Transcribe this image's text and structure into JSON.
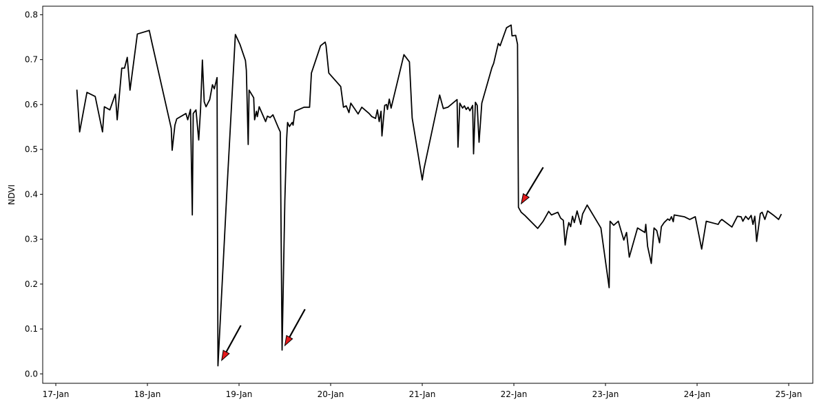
{
  "chart_data": {
    "type": "line",
    "ylabel": "NDVI",
    "color": "#000000",
    "grid": false,
    "x": [
      17.23,
      17.26,
      17.34,
      17.43,
      17.51,
      17.53,
      17.59,
      17.65,
      17.67,
      17.72,
      17.75,
      17.78,
      17.81,
      17.89,
      18.02,
      18.05,
      18.26,
      18.27,
      18.3,
      18.32,
      18.42,
      18.44,
      18.47,
      18.49,
      18.5,
      18.53,
      18.56,
      18.58,
      18.6,
      18.62,
      18.64,
      18.68,
      18.71,
      18.73,
      18.76,
      18.77,
      18.87,
      18.96,
      19.01,
      19.07,
      19.08,
      19.1,
      19.11,
      19.16,
      19.17,
      19.19,
      19.2,
      19.22,
      19.29,
      19.31,
      19.34,
      19.37,
      19.43,
      19.45,
      19.47,
      19.5,
      19.52,
      19.53,
      19.55,
      19.58,
      19.59,
      19.61,
      19.71,
      19.77,
      19.79,
      19.89,
      19.94,
      19.95,
      19.98,
      20.11,
      20.14,
      20.17,
      20.2,
      20.22,
      20.3,
      20.34,
      20.42,
      20.45,
      20.49,
      20.51,
      20.53,
      20.55,
      20.56,
      20.59,
      20.61,
      20.62,
      20.64,
      20.66,
      20.8,
      20.86,
      20.89,
      21.0,
      21.02,
      21.19,
      21.23,
      21.28,
      21.38,
      21.39,
      21.41,
      21.44,
      21.46,
      21.48,
      21.5,
      21.52,
      21.55,
      21.56,
      21.58,
      21.6,
      21.62,
      21.65,
      21.76,
      21.78,
      21.83,
      21.85,
      21.92,
      21.97,
      21.98,
      22.02,
      22.04,
      22.05,
      22.08,
      22.12,
      22.26,
      22.32,
      22.38,
      22.41,
      22.48,
      22.51,
      22.54,
      22.56,
      22.58,
      22.6,
      22.62,
      22.64,
      22.66,
      22.69,
      22.73,
      22.75,
      22.8,
      22.95,
      23.04,
      23.05,
      23.09,
      23.14,
      23.2,
      23.23,
      23.26,
      23.35,
      23.43,
      23.44,
      23.46,
      23.5,
      23.53,
      23.56,
      23.59,
      23.61,
      23.64,
      23.68,
      23.7,
      23.72,
      23.74,
      23.75,
      23.86,
      23.92,
      23.98,
      24.05,
      24.1,
      24.23,
      24.25,
      24.27,
      24.38,
      24.44,
      24.48,
      24.5,
      24.53,
      24.56,
      24.59,
      24.61,
      24.63,
      24.65,
      24.69,
      24.71,
      24.74,
      24.77,
      24.83,
      24.89,
      24.92
    ],
    "values": [
      0.633,
      0.539,
      0.627,
      0.618,
      0.539,
      0.595,
      0.588,
      0.623,
      0.566,
      0.681,
      0.681,
      0.705,
      0.632,
      0.757,
      0.765,
      0.737,
      0.547,
      0.498,
      0.554,
      0.568,
      0.58,
      0.566,
      0.589,
      0.354,
      0.58,
      0.588,
      0.521,
      0.589,
      0.699,
      0.606,
      0.595,
      0.611,
      0.644,
      0.635,
      0.66,
      0.018,
      0.417,
      0.756,
      0.734,
      0.698,
      0.676,
      0.511,
      0.632,
      0.615,
      0.566,
      0.585,
      0.573,
      0.595,
      0.562,
      0.574,
      0.571,
      0.577,
      0.548,
      0.539,
      0.053,
      0.386,
      0.524,
      0.56,
      0.551,
      0.56,
      0.554,
      0.585,
      0.594,
      0.594,
      0.67,
      0.731,
      0.739,
      0.731,
      0.67,
      0.64,
      0.594,
      0.597,
      0.582,
      0.603,
      0.579,
      0.594,
      0.58,
      0.573,
      0.569,
      0.588,
      0.562,
      0.585,
      0.53,
      0.598,
      0.6,
      0.589,
      0.612,
      0.592,
      0.711,
      0.695,
      0.57,
      0.432,
      0.458,
      0.621,
      0.591,
      0.594,
      0.611,
      0.505,
      0.603,
      0.592,
      0.597,
      0.589,
      0.594,
      0.586,
      0.598,
      0.49,
      0.605,
      0.598,
      0.516,
      0.603,
      0.682,
      0.692,
      0.736,
      0.731,
      0.771,
      0.777,
      0.753,
      0.754,
      0.734,
      0.371,
      0.36,
      0.353,
      0.324,
      0.34,
      0.362,
      0.354,
      0.36,
      0.347,
      0.342,
      0.287,
      0.318,
      0.337,
      0.328,
      0.351,
      0.337,
      0.363,
      0.333,
      0.356,
      0.376,
      0.325,
      0.192,
      0.34,
      0.331,
      0.34,
      0.298,
      0.315,
      0.26,
      0.325,
      0.315,
      0.333,
      0.284,
      0.246,
      0.325,
      0.319,
      0.292,
      0.328,
      0.337,
      0.345,
      0.342,
      0.35,
      0.339,
      0.354,
      0.35,
      0.344,
      0.35,
      0.278,
      0.34,
      0.333,
      0.34,
      0.344,
      0.327,
      0.351,
      0.35,
      0.34,
      0.351,
      0.344,
      0.353,
      0.333,
      0.351,
      0.295,
      0.357,
      0.36,
      0.344,
      0.363,
      0.354,
      0.344,
      0.356
    ],
    "xlim": [
      16.857,
      25.263
    ],
    "xticks": [
      {
        "value": 17,
        "label": "17-Jan"
      },
      {
        "value": 18,
        "label": "18-Jan"
      },
      {
        "value": 19,
        "label": "19-Jan"
      },
      {
        "value": 20,
        "label": "20-Jan"
      },
      {
        "value": 21,
        "label": "21-Jan"
      },
      {
        "value": 22,
        "label": "22-Jan"
      },
      {
        "value": 23,
        "label": "23-Jan"
      },
      {
        "value": 24,
        "label": "24-Jan"
      },
      {
        "value": 25,
        "label": "25-Jan"
      }
    ],
    "ylim": [
      -0.021,
      0.819
    ],
    "yticks": [
      {
        "value": 0,
        "label": "0.0"
      },
      0.1,
      0.2,
      0.3,
      0.4,
      0.5,
      0.6,
      0.7,
      0.8
    ],
    "annotations": [
      {
        "xy": [
          18.81,
          0.03
        ],
        "xytext": [
          19.02,
          0.108
        ],
        "color": "#e41a1c"
      },
      {
        "xy": [
          19.5,
          0.063
        ],
        "xytext": [
          19.72,
          0.144
        ],
        "color": "#e41a1c"
      },
      {
        "xy": [
          22.08,
          0.379
        ],
        "xytext": [
          22.32,
          0.46
        ],
        "color": "#e41a1c"
      }
    ]
  }
}
